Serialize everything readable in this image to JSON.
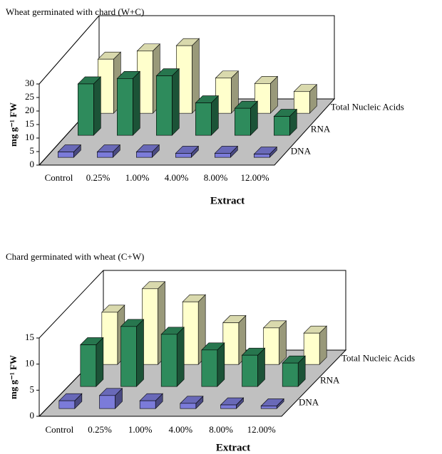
{
  "chart_data": [
    {
      "type": "bar",
      "title": "Wheat germinated with chard (W+C)",
      "x_label": "Extract",
      "y_label": "mg g⁻¹ FW",
      "categories": [
        "Control",
        "0.25%",
        "1.00%",
        "4.00%",
        "8.00%",
        "12.00%"
      ],
      "series": [
        {
          "name": "DNA",
          "color": "#7b7bd9",
          "values": [
            2,
            2,
            2,
            1.5,
            1.5,
            1.2
          ]
        },
        {
          "name": "RNA",
          "color": "#2e8b5c",
          "values": [
            19,
            21,
            22,
            12,
            10,
            7
          ]
        },
        {
          "name": "Total Nucleic Acids",
          "color": "#ffffcc",
          "values": [
            20,
            23,
            25,
            13,
            11,
            8
          ]
        }
      ],
      "ylim": [
        0,
        30
      ],
      "yticks": [
        0,
        5,
        10,
        15,
        20,
        25,
        30
      ]
    },
    {
      "type": "bar",
      "title": "Chard germinated with wheat (C+W)",
      "x_label": "Extract",
      "y_label": "mg g⁻¹ FW",
      "categories": [
        "Control",
        "0.25%",
        "1.00%",
        "4.00%",
        "8.00%",
        "12.00%"
      ],
      "series": [
        {
          "name": "DNA",
          "color": "#7b7bd9",
          "values": [
            1.5,
            2.5,
            1.5,
            1,
            0.7,
            0.5
          ]
        },
        {
          "name": "RNA",
          "color": "#2e8b5c",
          "values": [
            8,
            11.5,
            10,
            7,
            6,
            4.5
          ]
        },
        {
          "name": "Total Nucleic Acids",
          "color": "#ffffcc",
          "values": [
            10,
            14.5,
            12,
            8,
            7,
            6
          ]
        }
      ],
      "ylim": [
        0,
        15
      ],
      "yticks": [
        0,
        5,
        10,
        15
      ]
    }
  ]
}
